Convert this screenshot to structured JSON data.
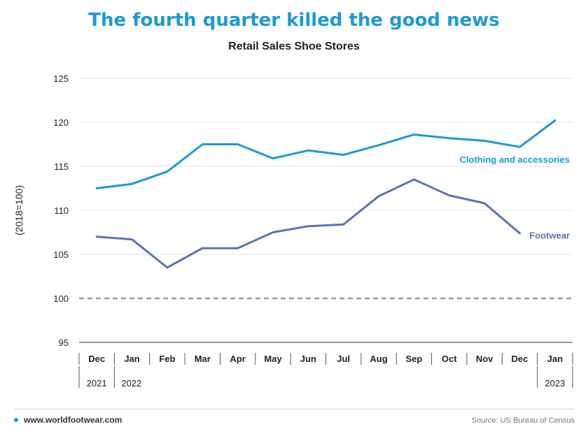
{
  "title": "The fourth quarter killed the good news",
  "subtitle": "Retail Sales Shoe Stores",
  "footer": {
    "website": "www.worldfootwear.com",
    "source": "Source: US Bureau of Census",
    "dot_color": "#1a9ad6"
  },
  "chart_data": {
    "type": "line",
    "title": "The fourth quarter killed the good news",
    "subtitle": "Retail Sales Shoe Stores",
    "ylabel": "(2018=100)",
    "xlabel": "",
    "ylim": [
      95,
      125
    ],
    "yticks": [
      95,
      100,
      105,
      110,
      115,
      120,
      125
    ],
    "grid": true,
    "categories": [
      "Dec",
      "Jan",
      "Feb",
      "Mar",
      "Apr",
      "May",
      "Jun",
      "Jul",
      "Aug",
      "Sep",
      "Oct",
      "Nov",
      "Dec",
      "Jan"
    ],
    "year_labels": [
      {
        "label": "2021",
        "index": 0
      },
      {
        "label": "2022",
        "index": 1
      },
      {
        "label": "2023",
        "index": 13
      }
    ],
    "reference_line": {
      "value": 100,
      "style": "dashed",
      "color": "#9a9a9a"
    },
    "series": [
      {
        "name": "Clothing and accessories",
        "color": "#1a9ad6",
        "values": [
          112.5,
          113.0,
          114.4,
          117.5,
          117.5,
          115.9,
          116.8,
          116.3,
          117.4,
          118.6,
          118.2,
          117.9,
          117.2,
          120.2
        ]
      },
      {
        "name": "Footwear",
        "color": "#5b73b4",
        "values": [
          107.0,
          106.7,
          103.5,
          105.7,
          105.7,
          107.5,
          108.2,
          108.4,
          111.6,
          113.5,
          111.7,
          110.8,
          107.4,
          null
        ]
      }
    ]
  }
}
